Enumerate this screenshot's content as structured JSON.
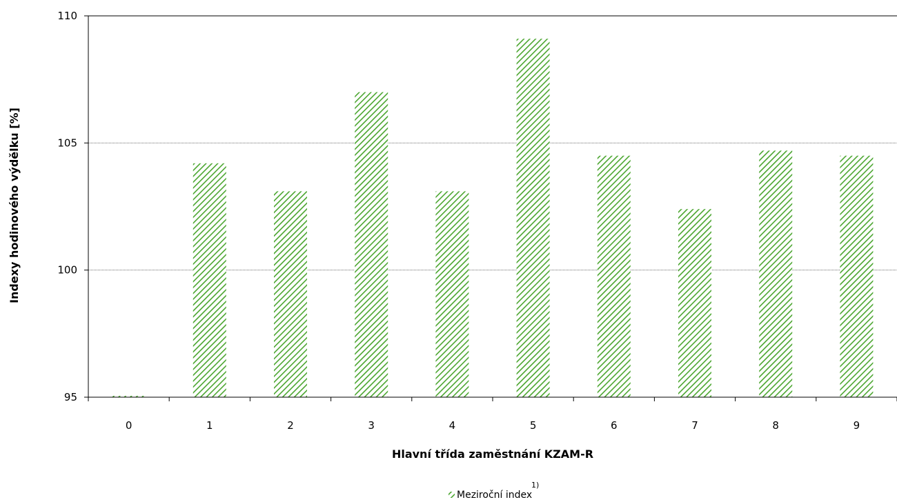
{
  "chart_data": {
    "type": "bar",
    "categories": [
      "0",
      "1",
      "2",
      "3",
      "4",
      "5",
      "6",
      "7",
      "8",
      "9"
    ],
    "series": [
      {
        "name": "Meziroční index",
        "values": [
          95.0,
          104.2,
          103.1,
          107.0,
          103.1,
          109.1,
          104.5,
          102.4,
          104.7,
          104.5
        ],
        "color": "#4aa52e",
        "pattern": "diagonal-hatch"
      }
    ],
    "xlabel": "Hlavní třída zaměstnání KZAM-R",
    "ylabel": "Indexy hodinového výdělku [%]",
    "ylim": [
      95,
      110
    ],
    "yticks": [
      "95",
      "100",
      "105",
      "110"
    ],
    "grid": true,
    "legend": {
      "position": "bottom-center",
      "label": "Meziroční index",
      "footnote": "1)"
    }
  }
}
